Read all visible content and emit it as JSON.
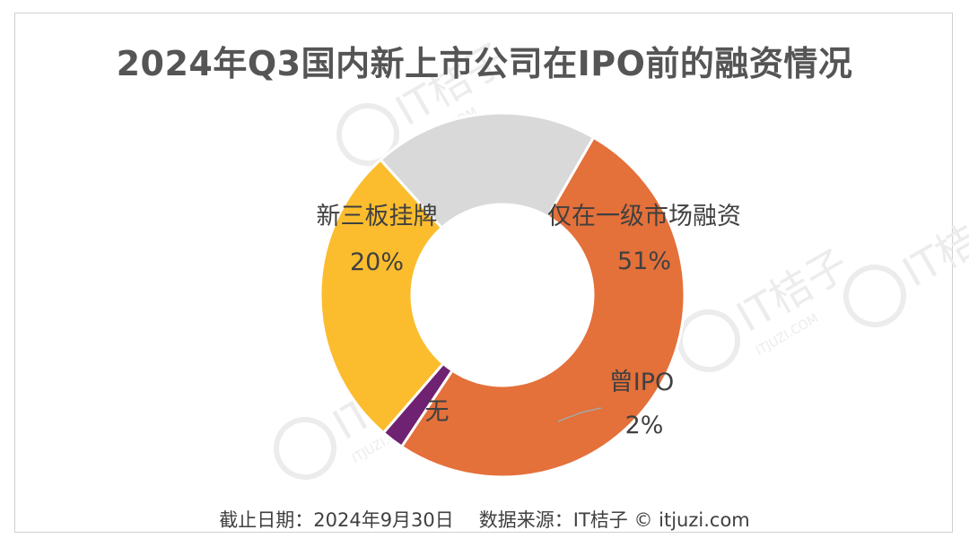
{
  "title": "2024年Q3国内新上市公司在IPO前的融资情况",
  "footer": {
    "date": "截止日期：2024年9月30日",
    "source": "数据来源：IT桔子 © itjuzi.com"
  },
  "colors": {
    "仅在一级市场融资": "#E4703A",
    "曾IPO": "#6E2271",
    "无": "#FBBD2E",
    "新三板挂牌": "#D9D9D9",
    "label_text": "#404040",
    "watermark": "#E8E8E8"
  },
  "chart_data": {
    "type": "pie",
    "variant": "donut",
    "title": "2024年Q3国内新上市公司在IPO前的融资情况",
    "slices": [
      {
        "label": "仅在一级市场融资",
        "value": 51,
        "display": "51%"
      },
      {
        "label": "曾IPO",
        "value": 2,
        "display": "2%"
      },
      {
        "label": "无",
        "value": 27,
        "display": ""
      },
      {
        "label": "新三板挂牌",
        "value": 20,
        "display": "20%"
      }
    ],
    "start_angle_deg": -60,
    "direction": "clockwise",
    "legend": "none"
  },
  "watermark": {
    "brand": "IT桔子",
    "url": "ITJUZI.COM"
  }
}
